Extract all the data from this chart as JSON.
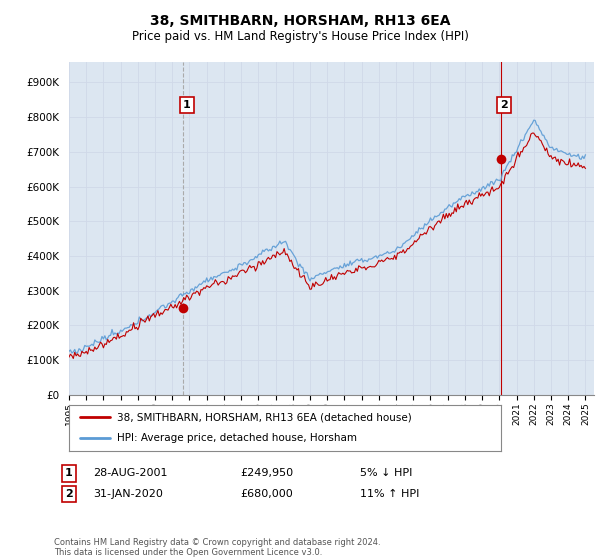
{
  "title": "38, SMITHBARN, HORSHAM, RH13 6EA",
  "subtitle": "Price paid vs. HM Land Registry's House Price Index (HPI)",
  "yticks": [
    0,
    100000,
    200000,
    300000,
    400000,
    500000,
    600000,
    700000,
    800000,
    900000
  ],
  "ytick_labels": [
    "£0",
    "£100K",
    "£200K",
    "£300K",
    "£400K",
    "£500K",
    "£600K",
    "£700K",
    "£800K",
    "£900K"
  ],
  "ylim": [
    0,
    960000
  ],
  "xlim_start": 1995.0,
  "xlim_end": 2025.5,
  "hpi_color": "#5b9bd5",
  "price_color": "#c00000",
  "vline1_color": "#aaaaaa",
  "vline1_style": "--",
  "vline2_color": "#c00000",
  "vline2_style": "-",
  "grid_color": "#d0d8e8",
  "chart_bg": "#dce6f1",
  "fig_bg": "#ffffff",
  "purchase1_date": 2001.65,
  "purchase1_price": 249950,
  "purchase2_date": 2020.08,
  "purchase2_price": 680000,
  "legend_label1": "38, SMITHBARN, HORSHAM, RH13 6EA (detached house)",
  "legend_label2": "HPI: Average price, detached house, Horsham",
  "note1_date": "28-AUG-2001",
  "note1_price": "£249,950",
  "note1_hpi": "5% ↓ HPI",
  "note2_date": "31-JAN-2020",
  "note2_price": "£680,000",
  "note2_hpi": "11% ↑ HPI",
  "footer": "Contains HM Land Registry data © Crown copyright and database right 2024.\nThis data is licensed under the Open Government Licence v3.0.",
  "xtick_years": [
    1995,
    1996,
    1997,
    1998,
    1999,
    2000,
    2001,
    2002,
    2003,
    2004,
    2005,
    2006,
    2007,
    2008,
    2009,
    2010,
    2011,
    2012,
    2013,
    2014,
    2015,
    2016,
    2017,
    2018,
    2019,
    2020,
    2021,
    2022,
    2023,
    2024,
    2025
  ]
}
